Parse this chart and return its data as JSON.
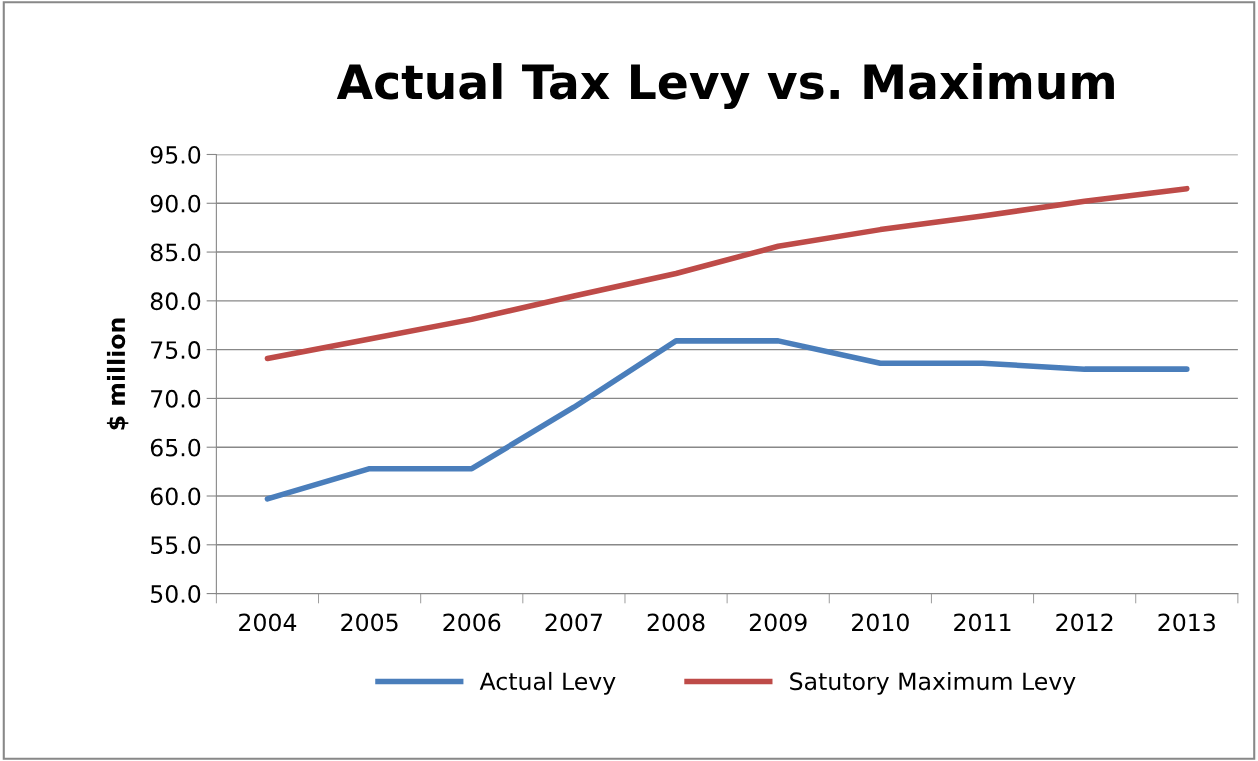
{
  "chart_data": {
    "type": "line",
    "title": "Actual Tax Levy vs. Maximum",
    "ylabel": "$ million",
    "categories": [
      "2004",
      "2005",
      "2006",
      "2007",
      "2008",
      "2009",
      "2010",
      "2011",
      "2012",
      "2013"
    ],
    "series": [
      {
        "name": "Actual Levy",
        "color": "#4a7ebb",
        "values": [
          59.7,
          62.8,
          62.8,
          69.1,
          75.9,
          75.9,
          73.6,
          73.6,
          73.0,
          73.0
        ]
      },
      {
        "name": "Satutory Maximum Levy",
        "color": "#be4b48",
        "values": [
          74.1,
          76.1,
          78.1,
          80.5,
          82.8,
          85.6,
          87.3,
          88.7,
          90.2,
          91.5
        ]
      }
    ],
    "ylim": [
      50,
      95
    ],
    "yticks": [
      {
        "value": 50,
        "label": "50.0"
      },
      {
        "value": 55,
        "label": "55.0"
      },
      {
        "value": 60,
        "label": "60.0"
      },
      {
        "value": 65,
        "label": "65.0"
      },
      {
        "value": 70,
        "label": "70.0"
      },
      {
        "value": 75,
        "label": "75.0"
      },
      {
        "value": 80,
        "label": "80.0"
      },
      {
        "value": 85,
        "label": "85.0"
      },
      {
        "value": 90,
        "label": "90.0"
      },
      {
        "value": 95,
        "label": "95.0"
      }
    ],
    "grid": "y",
    "legend": "bottom",
    "marker": "none",
    "line_style": "solid"
  }
}
